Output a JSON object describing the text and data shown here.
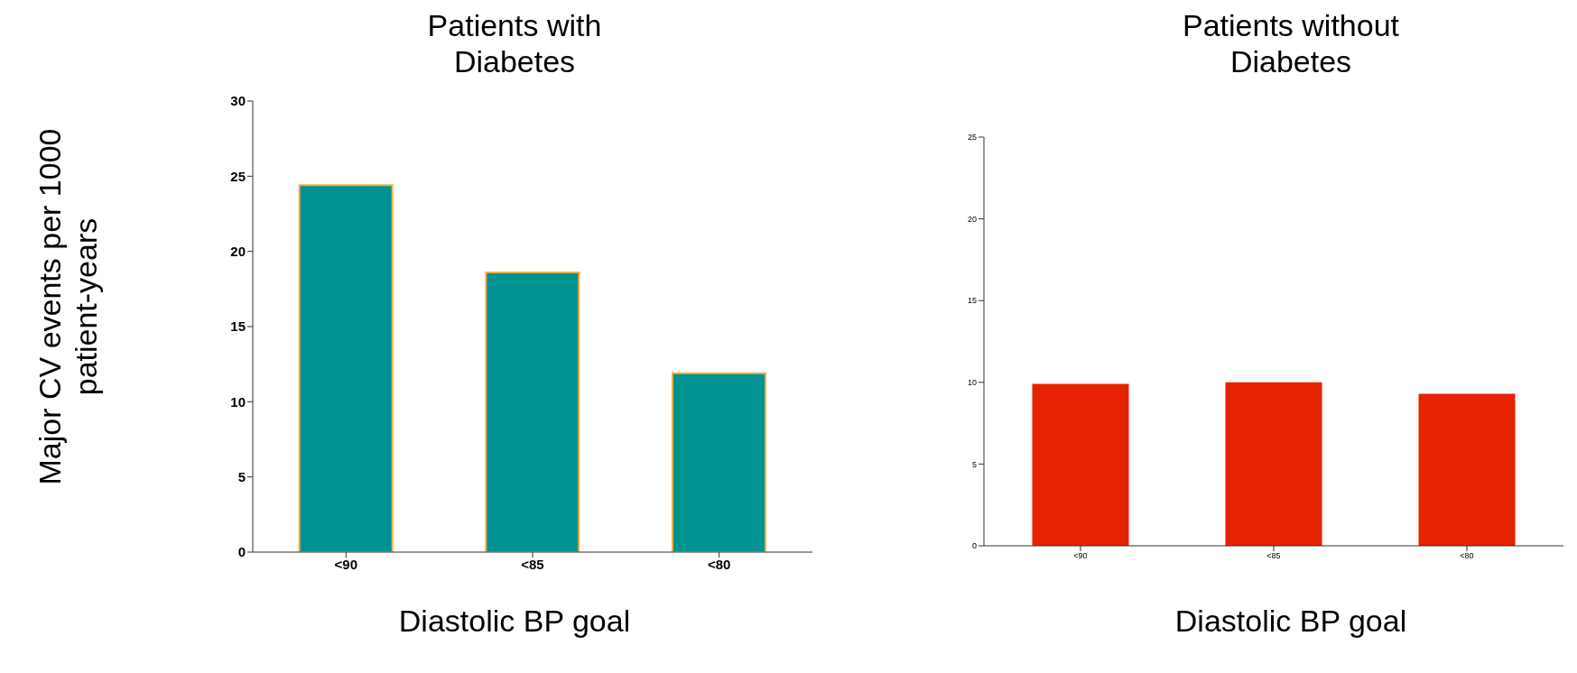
{
  "chart_data": [
    {
      "type": "bar",
      "title": "Patients with Diabetes",
      "ylabel": "Major CV events per 1000 patient-years",
      "xlabel": "Diastolic BP goal",
      "categories": [
        "<90",
        "<85",
        "<80"
      ],
      "values": [
        24.4,
        18.6,
        11.9
      ],
      "color": "#009191",
      "ylim": [
        0,
        30
      ],
      "yticks": [
        0,
        5,
        10,
        15,
        20,
        25,
        30
      ]
    },
    {
      "type": "bar",
      "title": "Patients without Diabetes",
      "xlabel": "Diastolic BP goal",
      "categories": [
        "<90",
        "<85",
        "<80"
      ],
      "values": [
        9.9,
        10.0,
        9.3
      ],
      "color": "#e62200",
      "ylim": [
        0,
        25
      ],
      "yticks": [
        0,
        5,
        10,
        15,
        20,
        25
      ]
    }
  ]
}
